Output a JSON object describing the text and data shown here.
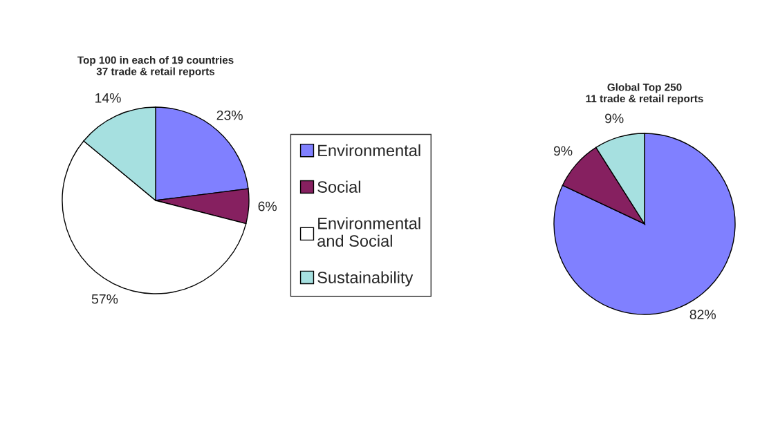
{
  "chart_data": [
    {
      "type": "pie",
      "title": "Top 100 in each of 19 countries\n37 trade & retail reports",
      "categories": [
        "Environmental",
        "Social",
        "Environmental\nand Social",
        "Sustainability"
      ],
      "values": [
        23,
        6,
        57,
        14
      ],
      "colors": [
        "#8080ff",
        "#862060",
        "#ffffff",
        "#a6e0e0"
      ],
      "value_labels": [
        "23%",
        "6%",
        "57%",
        "14%"
      ],
      "legend": "right"
    },
    {
      "type": "pie",
      "title": "Global Top 250\n11 trade & retail reports",
      "categories": [
        null,
        null,
        null
      ],
      "values": [
        82,
        9,
        9
      ],
      "colors": [
        "#8080ff",
        "#862060",
        "#a6e0e0"
      ],
      "value_labels": [
        "82%",
        "9%",
        "9%"
      ]
    }
  ]
}
